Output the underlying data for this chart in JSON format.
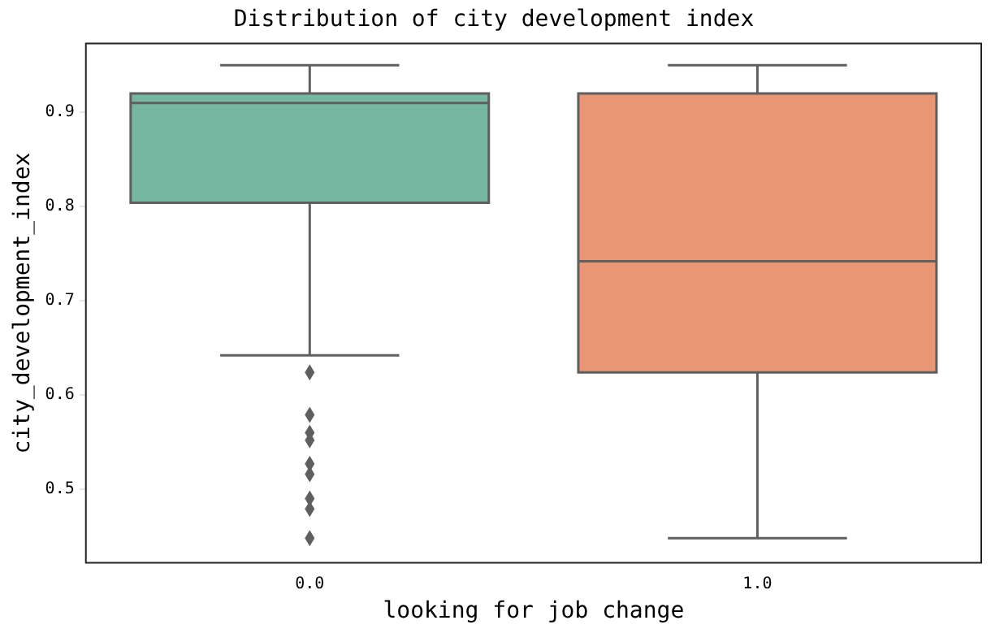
{
  "chart_data": {
    "type": "box",
    "title": "Distribution of city development index",
    "xlabel": "looking for job change",
    "ylabel": "city_development_index",
    "categories": [
      "0.0",
      "1.0"
    ],
    "colors": [
      "#76b7a2",
      "#e99675"
    ],
    "boxes": [
      {
        "low": 0.642,
        "q1": 0.804,
        "median": 0.91,
        "q3": 0.92,
        "high": 0.95,
        "outliers": [
          0.624,
          0.579,
          0.56,
          0.552,
          0.527,
          0.516,
          0.49,
          0.479,
          0.448
        ]
      },
      {
        "low": 0.448,
        "q1": 0.624,
        "median": 0.742,
        "q3": 0.92,
        "high": 0.95
      }
    ],
    "ylim": [
      0.422,
      0.973
    ],
    "yticks": [
      0.5,
      0.6,
      0.7,
      0.8,
      0.9
    ],
    "grid": false
  }
}
